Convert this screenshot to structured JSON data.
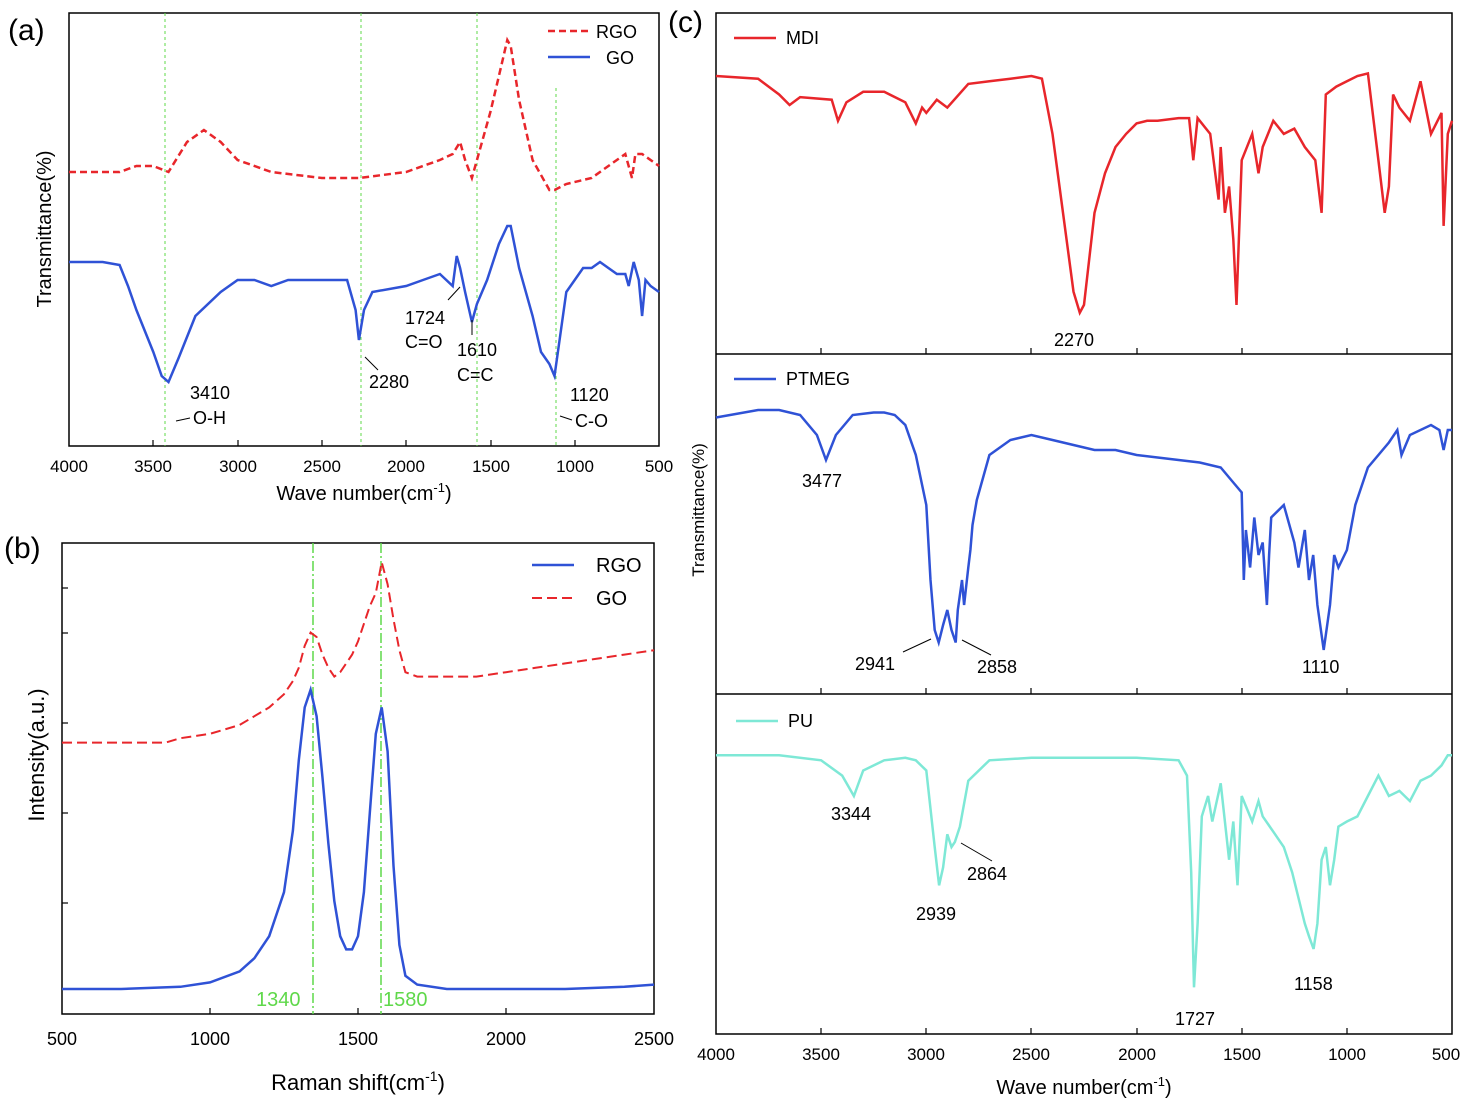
{
  "panels": {
    "a": {
      "label": "(a)",
      "xlabel": "Wave number(cm",
      "xlabel_sup": "-1",
      "xlabel_end": ")",
      "ylabel": "Transmittance(%)",
      "ticks": [
        "4000",
        "3500",
        "3000",
        "2500",
        "2000",
        "1500",
        "1000",
        "500"
      ],
      "legend": [
        "RGO",
        "GO"
      ],
      "annotations": [
        "3410",
        "O-H",
        "2280",
        "1724",
        "C=O",
        "1610",
        "C=C",
        "1120",
        "C-O"
      ]
    },
    "b": {
      "label": "(b)",
      "xlabel": "Raman shift(cm",
      "xlabel_sup": "-1",
      "xlabel_end": ")",
      "ylabel": "Intensity(a.u.)",
      "ticks": [
        "500",
        "1000",
        "1500",
        "2000",
        "2500"
      ],
      "legend": [
        "RGO",
        "GO"
      ],
      "annotations": [
        "1340",
        "1580"
      ]
    },
    "c": {
      "label": "(c)",
      "xlabel": "Wave number(cm",
      "xlabel_sup": "-1",
      "xlabel_end": ")",
      "ylabel": "Transmittance(%)",
      "ticks": [
        "4000",
        "3500",
        "3000",
        "2500",
        "2000",
        "1500",
        "1000",
        "500"
      ],
      "legend": [
        "MDI",
        "PTMEG",
        "PU"
      ],
      "annotations": [
        "2270",
        "3477",
        "2941",
        "2858",
        "1110",
        "3344",
        "2939",
        "2864",
        "1727",
        "1158"
      ]
    }
  },
  "colors": {
    "red": "#e8262b",
    "blue": "#2f52d6",
    "cyan": "#7ee8d6",
    "green": "#5fd84a"
  },
  "chart_data": [
    {
      "type": "line",
      "panel": "a",
      "xlabel": "Wave number(cm-1)",
      "ylabel": "Transmittance(%)",
      "xlim": [
        4000,
        500
      ],
      "x_reversed": true,
      "reference_lines_x": [
        3410,
        2280,
        1610,
        1120
      ],
      "series": [
        {
          "name": "RGO",
          "color": "#e8262b",
          "style": "dashed",
          "x": [
            4000,
            3700,
            3600,
            3500,
            3410,
            3300,
            3200,
            3100,
            3000,
            2800,
            2500,
            2280,
            2000,
            1800,
            1724,
            1680,
            1650,
            1610,
            1550,
            1500,
            1450,
            1400,
            1380,
            1330,
            1250,
            1150,
            1120,
            1050,
            900,
            800,
            700,
            660,
            640,
            600,
            500
          ],
          "y": [
            28,
            28,
            29,
            29,
            28,
            33,
            35,
            33,
            30,
            28,
            27,
            27,
            28,
            30,
            31,
            33,
            30,
            27,
            33,
            38,
            44,
            50,
            49,
            40,
            30,
            25,
            25,
            26,
            27,
            29,
            31,
            27,
            31,
            31,
            29
          ]
        },
        {
          "name": "GO",
          "color": "#2f52d6",
          "style": "solid",
          "x": [
            4000,
            3800,
            3700,
            3650,
            3600,
            3500,
            3450,
            3410,
            3350,
            3250,
            3100,
            3000,
            2900,
            2800,
            2700,
            2500,
            2350,
            2300,
            2280,
            2250,
            2200,
            2000,
            1900,
            1800,
            1724,
            1700,
            1680,
            1650,
            1610,
            1580,
            1520,
            1450,
            1400,
            1380,
            1330,
            1250,
            1200,
            1150,
            1120,
            1100,
            1050,
            950,
            900,
            850,
            800,
            750,
            700,
            680,
            650,
            620,
            600,
            580,
            550,
            500
          ],
          "y": [
            13,
            13,
            12.5,
            9,
            5,
            -2,
            -6,
            -7,
            -3,
            4,
            8,
            10,
            10,
            9,
            10,
            10,
            10,
            5,
            0,
            5,
            8,
            9,
            10,
            11,
            9,
            14,
            12,
            8,
            3,
            6,
            10,
            16,
            19,
            19,
            12,
            4,
            -2,
            -4,
            -6,
            -2,
            8,
            12,
            12,
            13,
            12,
            11,
            11,
            9,
            13,
            10,
            4,
            10,
            9,
            8
          ]
        }
      ]
    },
    {
      "type": "line",
      "panel": "b",
      "xlabel": "Raman shift(cm-1)",
      "ylabel": "Intensity(a.u.)",
      "xlim": [
        500,
        2500
      ],
      "reference_lines_x": [
        1340,
        1580
      ],
      "series": [
        {
          "name": "RGO",
          "color": "#2f52d6",
          "style": "solid",
          "x": [
            500,
            700,
            900,
            1000,
            1100,
            1150,
            1200,
            1250,
            1280,
            1300,
            1320,
            1340,
            1360,
            1380,
            1400,
            1420,
            1440,
            1460,
            1480,
            1500,
            1520,
            1540,
            1560,
            1580,
            1600,
            1620,
            1640,
            1660,
            1700,
            1800,
            2000,
            2200,
            2400,
            2500
          ],
          "y": [
            0,
            0,
            0.5,
            1.5,
            4,
            7,
            12,
            22,
            36,
            52,
            64,
            68,
            62,
            48,
            33,
            20,
            12,
            9,
            9,
            12,
            22,
            40,
            58,
            64,
            54,
            28,
            10,
            3,
            1,
            0,
            0,
            0,
            0.5,
            1
          ]
        },
        {
          "name": "GO",
          "color": "#e8262b",
          "style": "dashed",
          "x": [
            500,
            700,
            850,
            900,
            1000,
            1100,
            1150,
            1200,
            1250,
            1280,
            1300,
            1320,
            1340,
            1360,
            1380,
            1400,
            1420,
            1440,
            1460,
            1480,
            1500,
            1520,
            1540,
            1560,
            1580,
            1600,
            1620,
            1640,
            1660,
            1700,
            1800,
            1900,
            2000,
            2100,
            2200,
            2300,
            2400,
            2500
          ],
          "y": [
            56,
            56,
            56,
            57,
            58,
            60,
            62,
            64,
            67,
            70,
            73,
            78,
            81,
            80,
            76,
            73,
            71,
            72,
            74,
            76,
            79,
            83,
            87,
            90,
            97,
            92,
            84,
            77,
            72,
            71,
            71,
            71,
            72,
            73,
            74,
            75,
            76,
            77
          ]
        }
      ]
    },
    {
      "type": "line",
      "panel": "c",
      "subplot": "MDI",
      "xlabel": "Wave number(cm-1)",
      "ylabel": "Transmittance(%)",
      "xlim": [
        4000,
        500
      ],
      "x_reversed": true,
      "series": [
        {
          "name": "MDI",
          "color": "#e8262b",
          "style": "solid",
          "x": [
            4000,
            3800,
            3700,
            3650,
            3600,
            3450,
            3420,
            3380,
            3300,
            3200,
            3100,
            3050,
            3020,
            3000,
            2950,
            2900,
            2800,
            2700,
            2600,
            2500,
            2450,
            2400,
            2350,
            2300,
            2270,
            2250,
            2200,
            2150,
            2100,
            2050,
            2000,
            1950,
            1900,
            1800,
            1750,
            1730,
            1710,
            1650,
            1610,
            1600,
            1580,
            1560,
            1540,
            1525,
            1500,
            1450,
            1420,
            1400,
            1350,
            1300,
            1250,
            1200,
            1150,
            1120,
            1100,
            1050,
            1000,
            950,
            900,
            850,
            820,
            800,
            780,
            750,
            700,
            650,
            600,
            550,
            540,
            520,
            500
          ],
          "y": [
            92,
            91,
            85,
            81,
            84,
            83,
            75,
            82,
            86,
            86,
            82,
            74,
            80,
            78,
            83,
            80,
            89,
            90,
            91,
            92,
            91,
            70,
            40,
            10,
            2,
            5,
            40,
            55,
            65,
            70,
            74,
            75,
            75,
            76,
            76,
            60,
            76,
            70,
            45,
            65,
            40,
            50,
            30,
            5,
            60,
            70,
            55,
            65,
            75,
            70,
            72,
            65,
            60,
            40,
            85,
            88,
            90,
            92,
            93,
            60,
            40,
            50,
            85,
            80,
            75,
            90,
            70,
            78,
            35,
            70,
            75
          ]
        }
      ]
    },
    {
      "type": "line",
      "panel": "c",
      "subplot": "PTMEG",
      "xlabel": "Wave number(cm-1)",
      "ylabel": "Transmittance(%)",
      "xlim": [
        4000,
        500
      ],
      "x_reversed": true,
      "series": [
        {
          "name": "PTMEG",
          "color": "#2f52d6",
          "style": "solid",
          "x": [
            4000,
            3800,
            3700,
            3600,
            3520,
            3477,
            3430,
            3350,
            3250,
            3200,
            3150,
            3100,
            3050,
            3000,
            2980,
            2960,
            2941,
            2920,
            2900,
            2880,
            2860,
            2850,
            2830,
            2820,
            2800,
            2790,
            2780,
            2760,
            2700,
            2600,
            2500,
            2400,
            2300,
            2200,
            2100,
            2000,
            1900,
            1800,
            1700,
            1600,
            1550,
            1500,
            1490,
            1480,
            1460,
            1440,
            1420,
            1400,
            1380,
            1370,
            1360,
            1300,
            1250,
            1230,
            1200,
            1180,
            1160,
            1140,
            1110,
            1080,
            1060,
            1040,
            1000,
            960,
            900,
            800,
            760,
            740,
            700,
            600,
            560,
            540,
            520,
            500
          ],
          "y": [
            95,
            98,
            98,
            96,
            88,
            78,
            88,
            96,
            97,
            97,
            96,
            92,
            80,
            60,
            30,
            10,
            5,
            12,
            18,
            10,
            5,
            18,
            30,
            20,
            35,
            42,
            52,
            62,
            80,
            86,
            88,
            86,
            84,
            82,
            82,
            80,
            79,
            78,
            77,
            75,
            70,
            65,
            30,
            50,
            35,
            55,
            40,
            45,
            20,
            40,
            55,
            60,
            45,
            35,
            50,
            30,
            40,
            20,
            2,
            20,
            40,
            35,
            42,
            60,
            75,
            85,
            90,
            80,
            88,
            92,
            90,
            82,
            90,
            90
          ]
        }
      ]
    },
    {
      "type": "line",
      "panel": "c",
      "subplot": "PU",
      "xlabel": "Wave number(cm-1)",
      "ylabel": "Transmittance(%)",
      "xlim": [
        4000,
        500
      ],
      "x_reversed": true,
      "series": [
        {
          "name": "PU",
          "color": "#7ee8d6",
          "style": "solid",
          "x": [
            4000,
            3700,
            3500,
            3400,
            3344,
            3300,
            3200,
            3100,
            3050,
            3000,
            2960,
            2939,
            2920,
            2900,
            2880,
            2864,
            2840,
            2800,
            2700,
            2500,
            2300,
            2000,
            1800,
            1760,
            1740,
            1727,
            1710,
            1690,
            1660,
            1640,
            1600,
            1560,
            1540,
            1520,
            1500,
            1450,
            1420,
            1400,
            1350,
            1300,
            1260,
            1230,
            1200,
            1180,
            1158,
            1140,
            1120,
            1100,
            1080,
            1060,
            1040,
            1000,
            950,
            900,
            850,
            800,
            750,
            700,
            650,
            600,
            550,
            520,
            500
          ],
          "y": [
            96,
            96,
            94,
            88,
            80,
            90,
            94,
            95,
            94,
            90,
            60,
            45,
            52,
            65,
            60,
            62,
            68,
            86,
            94,
            95,
            95,
            95,
            94,
            88,
            50,
            5,
            30,
            72,
            80,
            70,
            85,
            55,
            70,
            45,
            80,
            70,
            78,
            72,
            66,
            60,
            50,
            40,
            30,
            25,
            20,
            30,
            55,
            60,
            45,
            55,
            68,
            70,
            72,
            80,
            88,
            80,
            82,
            78,
            86,
            88,
            92,
            96,
            96
          ]
        }
      ]
    }
  ]
}
